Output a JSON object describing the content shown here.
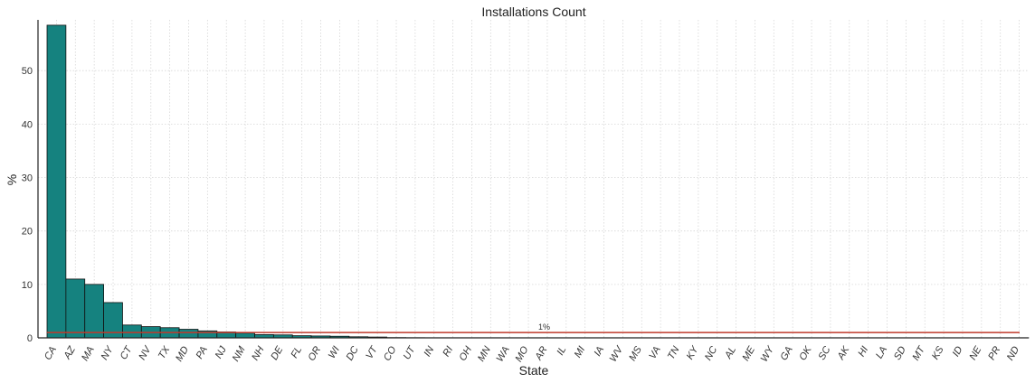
{
  "chart_data": {
    "type": "bar",
    "title": "Installations Count",
    "xlabel": "State",
    "ylabel": "%",
    "categories": [
      "CA",
      "AZ",
      "MA",
      "NY",
      "CT",
      "NV",
      "TX",
      "MD",
      "PA",
      "NJ",
      "NM",
      "NH",
      "DE",
      "FL",
      "OR",
      "WI",
      "DC",
      "VT",
      "CO",
      "UT",
      "IN",
      "RI",
      "OH",
      "MN",
      "WA",
      "MO",
      "AR",
      "IL",
      "MI",
      "IA",
      "WV",
      "MS",
      "VA",
      "TN",
      "KY",
      "NC",
      "AL",
      "ME",
      "WY",
      "GA",
      "OK",
      "SC",
      "AK",
      "HI",
      "LA",
      "SD",
      "MT",
      "KS",
      "ID",
      "NE",
      "PR",
      "ND"
    ],
    "values": [
      58.5,
      11.0,
      10.0,
      6.6,
      2.4,
      2.1,
      1.9,
      1.6,
      1.3,
      1.1,
      0.9,
      0.6,
      0.55,
      0.4,
      0.35,
      0.3,
      0.2,
      0.15,
      0.05,
      0.03,
      0.02,
      0.02,
      0.02,
      0.02,
      0.01,
      0.01,
      0.01,
      0.01,
      0.01,
      0.01,
      0.01,
      0.01,
      0.01,
      0.01,
      0.01,
      0.01,
      0.01,
      0.01,
      0.01,
      0.01,
      0.01,
      0.01,
      0.01,
      0.01,
      0.01,
      0.01,
      0.01,
      0.01,
      0.01,
      0.01,
      0.01,
      0.01
    ],
    "ylim": [
      0,
      59.5
    ],
    "yticks": [
      0,
      10,
      20,
      30,
      40,
      50
    ],
    "reference_line": {
      "value": 1,
      "label": "1%",
      "color": "#c0392b"
    },
    "bar_color": "#15827f",
    "grid": true,
    "legend": "none"
  }
}
